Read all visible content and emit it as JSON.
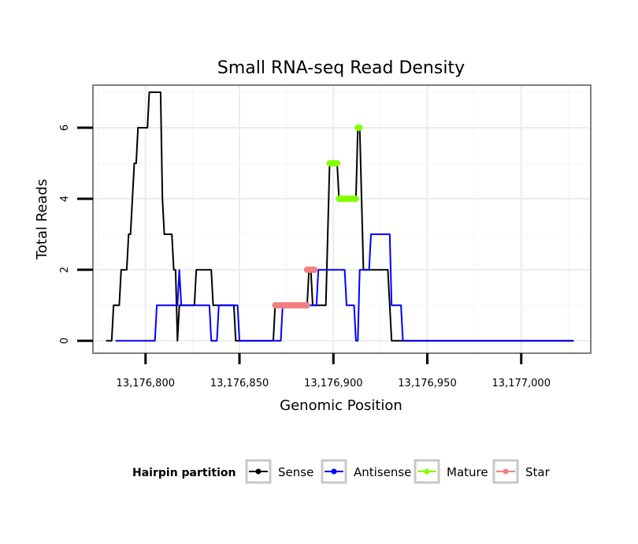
{
  "chart_data": {
    "type": "line",
    "title": "Small RNA-seq Read Density",
    "xlabel": "Genomic Position",
    "ylabel": "Total Reads",
    "xlim": [
      13176772,
      13177037
    ],
    "ylim": [
      -0.35,
      7.2
    ],
    "x_ticks": [
      13176800,
      13176850,
      13176900,
      13176950,
      13177000
    ],
    "x_tick_labels": [
      "13,176,800",
      "13,176,850",
      "13,176,900",
      "13,176,950",
      "13,177,000"
    ],
    "y_ticks": [
      0,
      2,
      4,
      6
    ],
    "y_tick_labels": [
      "0",
      "2",
      "4",
      "6"
    ],
    "legend": {
      "title": "Hairpin partition",
      "position": "bottom",
      "entries": [
        {
          "label": "Sense",
          "color": "#000000"
        },
        {
          "label": "Antisense",
          "color": "#0000ff"
        },
        {
          "label": "Mature",
          "color": "#7fff00"
        },
        {
          "label": "Star",
          "color": "#f08080"
        }
      ]
    },
    "series": [
      {
        "name": "Sense",
        "color": "#000000",
        "points": [
          [
            13176779,
            0
          ],
          [
            13176782,
            0
          ],
          [
            13176783,
            1
          ],
          [
            13176786,
            1
          ],
          [
            13176787,
            2
          ],
          [
            13176790,
            2
          ],
          [
            13176791,
            3
          ],
          [
            13176792,
            3
          ],
          [
            13176793,
            4
          ],
          [
            13176794,
            5
          ],
          [
            13176795,
            5
          ],
          [
            13176796,
            6
          ],
          [
            13176801,
            6
          ],
          [
            13176802,
            7
          ],
          [
            13176808,
            7
          ],
          [
            13176809,
            4
          ],
          [
            13176810,
            3
          ],
          [
            13176814,
            3
          ],
          [
            13176815,
            2
          ],
          [
            13176816,
            2
          ],
          [
            13176817,
            0
          ],
          [
            13176818,
            1
          ],
          [
            13176826,
            1
          ],
          [
            13176827,
            2
          ],
          [
            13176835,
            2
          ],
          [
            13176836,
            1
          ],
          [
            13176847,
            1
          ],
          [
            13176848,
            0
          ],
          [
            13176868,
            0
          ],
          [
            13176869,
            1
          ],
          [
            13176886,
            1
          ],
          [
            13176887,
            2
          ],
          [
            13176888,
            2
          ],
          [
            13176889,
            1
          ],
          [
            13176896,
            1
          ],
          [
            13176897,
            3
          ],
          [
            13176898,
            5
          ],
          [
            13176902,
            5
          ],
          [
            13176903,
            4
          ],
          [
            13176912,
            4
          ],
          [
            13176913,
            6
          ],
          [
            13176914,
            6
          ],
          [
            13176916,
            2
          ],
          [
            13176929,
            2
          ],
          [
            13176930,
            1
          ],
          [
            13176931,
            0
          ],
          [
            13177028,
            0
          ]
        ]
      },
      {
        "name": "Antisense",
        "color": "#0000ff",
        "points": [
          [
            13176784,
            0
          ],
          [
            13176805,
            0
          ],
          [
            13176806,
            1
          ],
          [
            13176817,
            1
          ],
          [
            13176818,
            2
          ],
          [
            13176819,
            1
          ],
          [
            13176834,
            1
          ],
          [
            13176835,
            0
          ],
          [
            13176838,
            0
          ],
          [
            13176839,
            1
          ],
          [
            13176849,
            1
          ],
          [
            13176850,
            0
          ],
          [
            13176872,
            0
          ],
          [
            13176873,
            1
          ],
          [
            13176891,
            1
          ],
          [
            13176892,
            2
          ],
          [
            13176906,
            2
          ],
          [
            13176907,
            1
          ],
          [
            13176911,
            1
          ],
          [
            13176912,
            0
          ],
          [
            13176913,
            0
          ],
          [
            13176914,
            2
          ],
          [
            13176919,
            2
          ],
          [
            13176920,
            3
          ],
          [
            13176930,
            3
          ],
          [
            13176931,
            1
          ],
          [
            13176936,
            1
          ],
          [
            13176937,
            0
          ],
          [
            13177028,
            0
          ]
        ]
      },
      {
        "name": "Mature",
        "color": "#7fff00",
        "segments": [
          {
            "x_start": 13176898,
            "x_end": 13176902,
            "y": 5
          },
          {
            "x_start": 13176903,
            "x_end": 13176912,
            "y": 4
          },
          {
            "x_start": 13176913,
            "x_end": 13176914,
            "y": 6
          }
        ]
      },
      {
        "name": "Star",
        "color": "#f08080",
        "segments": [
          {
            "x_start": 13176869,
            "x_end": 13176886,
            "y": 1
          },
          {
            "x_start": 13176886,
            "x_end": 13176890,
            "y": 2
          }
        ]
      }
    ]
  }
}
